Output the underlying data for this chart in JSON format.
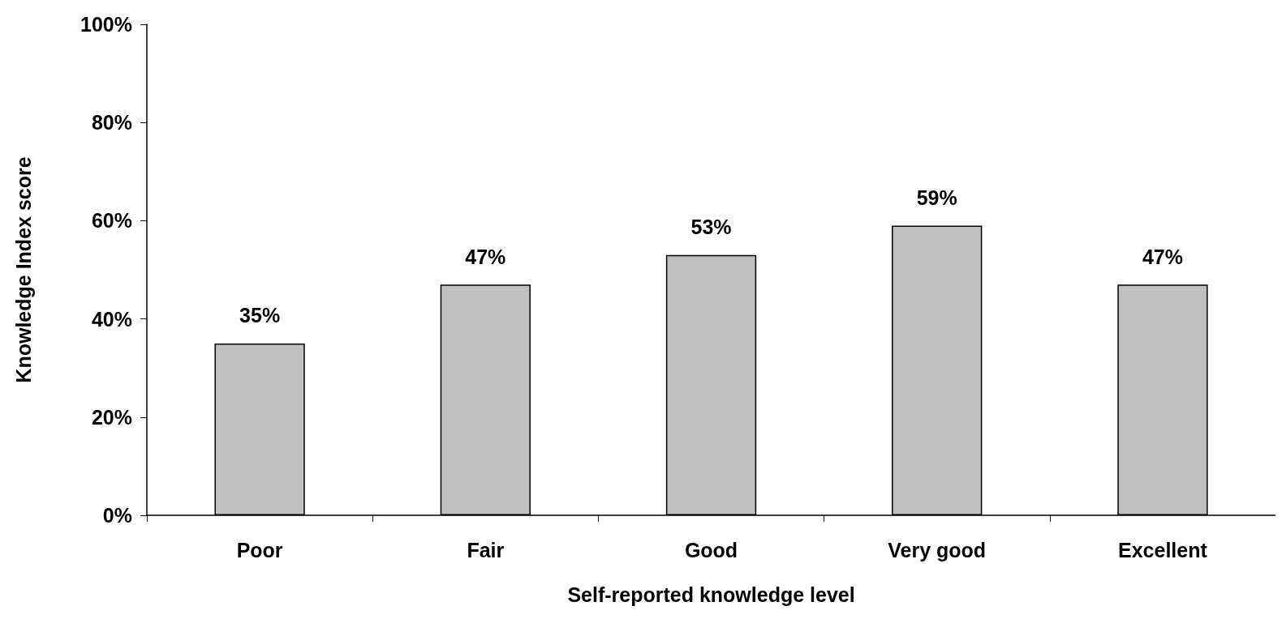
{
  "chart_data": {
    "type": "bar",
    "xlabel": "Self-reported knowledge level",
    "ylabel": "Knowledge Index score",
    "categories": [
      "Poor",
      "Fair",
      "Good",
      "Very good",
      "Excellent"
    ],
    "values": [
      35,
      47,
      53,
      59,
      47
    ],
    "value_labels": [
      "35%",
      "47%",
      "53%",
      "59%",
      "47%"
    ],
    "color": "#c0c0c0",
    "ylim": [
      0,
      100
    ],
    "yticks": [
      {
        "value": 0,
        "label": "0%"
      },
      {
        "value": 20,
        "label": "20%"
      },
      {
        "value": 40,
        "label": "40%"
      },
      {
        "value": 60,
        "label": "60%"
      },
      {
        "value": 80,
        "label": "80%"
      },
      {
        "value": 100,
        "label": "100%"
      }
    ],
    "grid": false
  }
}
